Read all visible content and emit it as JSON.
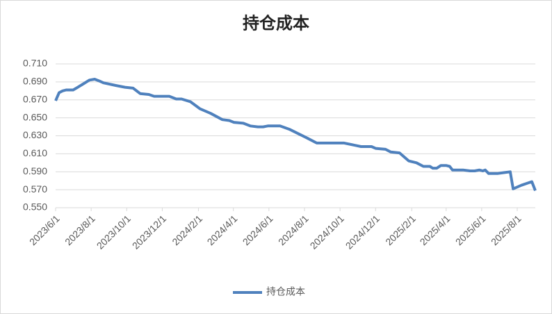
{
  "chart_data": {
    "type": "line",
    "title": "持仓成本",
    "x": [
      "2023/6/1",
      "2023/6/7",
      "2023/6/13",
      "2023/6/19",
      "2023/7/1",
      "2023/7/9",
      "2023/7/19",
      "2023/7/29",
      "2023/8/7",
      "2023/8/15",
      "2023/8/22",
      "2023/9/12",
      "2023/9/28",
      "2023/10/12",
      "2023/10/24",
      "2023/11/8",
      "2023/11/17",
      "2023/12/13",
      "2023/12/25",
      "2024/1/3",
      "2024/1/18",
      "2024/2/4",
      "2024/2/22",
      "2024/3/13",
      "2024/3/25",
      "2024/4/2",
      "2024/4/18",
      "2024/4/30",
      "2024/5/13",
      "2024/5/22",
      "2024/5/30",
      "2024/6/20",
      "2024/7/7",
      "2024/8/4",
      "2024/8/22",
      "2024/10/8",
      "2024/11/6",
      "2024/11/24",
      "2024/12/1",
      "2024/12/18",
      "2024/12/27",
      "2025/1/11",
      "2025/1/27",
      "2025/2/9",
      "2025/2/21",
      "2025/3/4",
      "2025/3/9",
      "2025/3/16",
      "2025/3/23",
      "2025/4/1",
      "2025/4/7",
      "2025/4/12",
      "2025/4/30",
      "2025/5/12",
      "2025/5/20",
      "2025/5/28",
      "2025/6/3",
      "2025/6/7",
      "2025/6/13",
      "2025/6/28",
      "2025/7/9",
      "2025/7/20",
      "2025/7/25",
      "2025/8/8",
      "2025/8/26",
      "2025/9/1"
    ],
    "series": [
      {
        "name": "持仓成本",
        "color": "#4f81bd",
        "values": [
          0.669,
          0.678,
          0.68,
          0.681,
          0.681,
          0.684,
          0.688,
          0.692,
          0.693,
          0.691,
          0.689,
          0.686,
          0.684,
          0.683,
          0.677,
          0.676,
          0.674,
          0.674,
          0.671,
          0.671,
          0.668,
          0.66,
          0.655,
          0.648,
          0.647,
          0.645,
          0.644,
          0.641,
          0.64,
          0.64,
          0.641,
          0.641,
          0.637,
          0.628,
          0.622,
          0.622,
          0.618,
          0.618,
          0.616,
          0.615,
          0.612,
          0.611,
          0.602,
          0.6,
          0.596,
          0.596,
          0.594,
          0.594,
          0.597,
          0.597,
          0.596,
          0.592,
          0.592,
          0.591,
          0.591,
          0.592,
          0.591,
          0.592,
          0.588,
          0.588,
          0.589,
          0.59,
          0.571,
          0.575,
          0.579,
          0.569
        ]
      }
    ],
    "xlim": [
      "2023/6/1",
      "2025/9/1"
    ],
    "xticks": [
      "2023/6/1",
      "2023/8/1",
      "2023/10/1",
      "2023/12/1",
      "2024/2/1",
      "2024/4/1",
      "2024/6/1",
      "2024/8/1",
      "2024/10/1",
      "2024/12/1",
      "2025/2/1",
      "2025/4/1",
      "2025/6/1",
      "2025/8/1"
    ],
    "ylim": [
      0.55,
      0.71
    ],
    "yticks": [
      {
        "value": 0.55,
        "label": "0.550"
      },
      {
        "value": 0.57,
        "label": "0.570"
      },
      {
        "value": 0.59,
        "label": "0.590"
      },
      {
        "value": 0.61,
        "label": "0.610"
      },
      {
        "value": 0.63,
        "label": "0.630"
      },
      {
        "value": 0.65,
        "label": "0.650"
      },
      {
        "value": 0.67,
        "label": "0.670"
      },
      {
        "value": 0.69,
        "label": "0.690"
      },
      {
        "value": 0.71,
        "label": "0.710"
      }
    ],
    "grid": true,
    "legend": "bottom"
  }
}
